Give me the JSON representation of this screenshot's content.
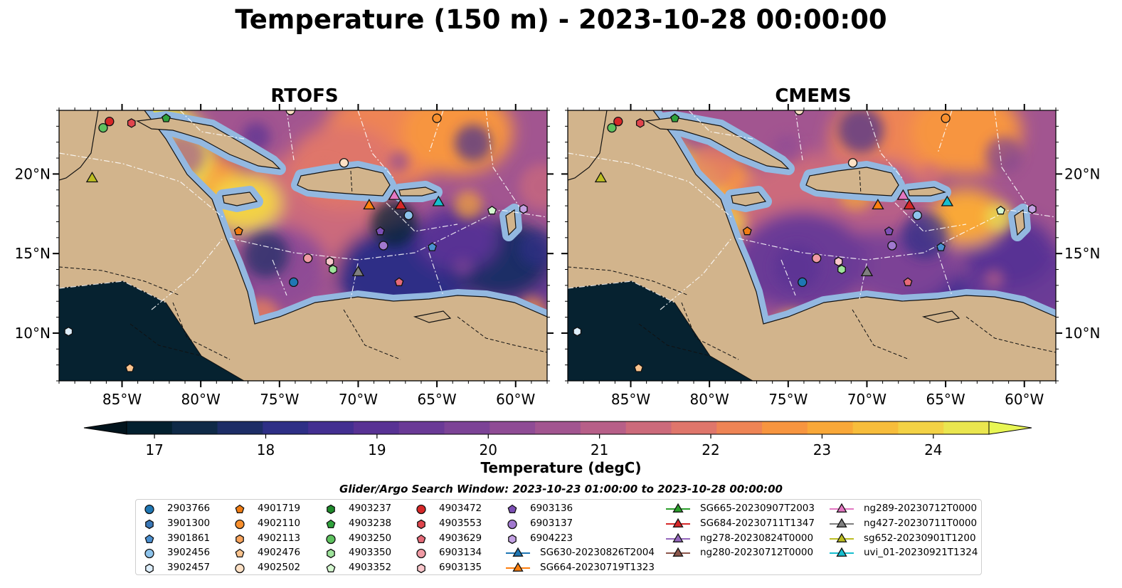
{
  "title": "Temperature (150 m) - 2023-10-28 00:00:00",
  "panels": [
    {
      "title": "RTOFS"
    },
    {
      "title": "CMEMS"
    }
  ],
  "axes": {
    "lon_ticks": [
      "85°W",
      "80°W",
      "75°W",
      "70°W",
      "65°W",
      "60°W"
    ],
    "lat_ticks": [
      "20°N",
      "15°N",
      "10°N"
    ],
    "lon_range": [
      -89,
      -58
    ],
    "lat_range": [
      7,
      24
    ]
  },
  "colorbar": {
    "label": "Temperature (degC)",
    "ticks": [
      "17",
      "18",
      "19",
      "20",
      "21",
      "22",
      "23",
      "24"
    ],
    "range": [
      16.75,
      24.5
    ],
    "colors": [
      "#03202f",
      "#0f2a47",
      "#1d2d66",
      "#2e2f86",
      "#432f91",
      "#583294",
      "#6a3a96",
      "#7c4396",
      "#8f4c95",
      "#a25590",
      "#b75f88",
      "#cc6a7b",
      "#df766b",
      "#ee8455",
      "#f7953f",
      "#f9a838",
      "#f7bd3b",
      "#f3d245",
      "#eae64f"
    ],
    "extend_low": "#02141d",
    "extend_high": "#e8f654"
  },
  "search_window": "Glider/Argo Search Window: 2023-10-23 01:00:00 to 2023-10-28 00:00:00",
  "legend": {
    "columns": [
      [
        {
          "label": "2903766",
          "marker": "circle",
          "color": "#1f77b4"
        },
        {
          "label": "3901300",
          "marker": "hexagon",
          "color": "#3a78b8"
        },
        {
          "label": "3901861",
          "marker": "pentagon",
          "color": "#4a8fd0"
        },
        {
          "label": "3902456",
          "marker": "circle",
          "color": "#8ec4ec"
        },
        {
          "label": "3902457",
          "marker": "hexagon",
          "color": "#ddeefb"
        }
      ],
      [
        {
          "label": "4901719",
          "marker": "pentagon",
          "color": "#f07c12"
        },
        {
          "label": "4902110",
          "marker": "circle",
          "color": "#f88f2d"
        },
        {
          "label": "4902113",
          "marker": "hexagon",
          "color": "#f9a45c"
        },
        {
          "label": "4902476",
          "marker": "pentagon",
          "color": "#fbc48e"
        },
        {
          "label": "4902502",
          "marker": "circle",
          "color": "#fde0c4"
        }
      ],
      [
        {
          "label": "4903237",
          "marker": "hexagon",
          "color": "#1e8b2a"
        },
        {
          "label": "4903238",
          "marker": "pentagon",
          "color": "#2fa23c"
        },
        {
          "label": "4903250",
          "marker": "circle",
          "color": "#5ec25f"
        },
        {
          "label": "4903350",
          "marker": "hexagon",
          "color": "#9ee39b"
        },
        {
          "label": "4903352",
          "marker": "pentagon",
          "color": "#d4f7cf"
        }
      ],
      [
        {
          "label": "4903472",
          "marker": "circle",
          "color": "#d62728"
        },
        {
          "label": "4903553",
          "marker": "hexagon",
          "color": "#e0454d"
        },
        {
          "label": "4903629",
          "marker": "pentagon",
          "color": "#e66a78"
        },
        {
          "label": "6903134",
          "marker": "circle",
          "color": "#f09aa4"
        },
        {
          "label": "6903135",
          "marker": "hexagon",
          "color": "#fac7cc"
        }
      ],
      [
        {
          "label": "6903136",
          "marker": "pentagon",
          "color": "#7c4fb5"
        },
        {
          "label": "6903137",
          "marker": "circle",
          "color": "#a178cf"
        },
        {
          "label": "6904223",
          "marker": "hexagon",
          "color": "#c3a1e3"
        },
        {
          "label": "SG630-20230826T2004",
          "marker": "triangle",
          "color": "#1f77b4",
          "line": true
        },
        {
          "label": "SG664-20230719T1323",
          "marker": "triangle",
          "color": "#ff7f0e",
          "line": true
        }
      ],
      [
        {
          "label": "SG665-20230907T2003",
          "marker": "triangle",
          "color": "#2ca02c",
          "line": true
        },
        {
          "label": "SG684-20230711T1347",
          "marker": "triangle",
          "color": "#d62728",
          "line": true
        },
        {
          "label": "ng278-20230824T0000",
          "marker": "triangle",
          "color": "#9467bd",
          "line": true
        },
        {
          "label": "ng280-20230712T0000",
          "marker": "triangle",
          "color": "#8c564b",
          "line": true
        }
      ],
      [
        {
          "label": "ng289-20230712T0000",
          "marker": "triangle",
          "color": "#e377c2",
          "line": true
        },
        {
          "label": "ng427-20230711T0000",
          "marker": "triangle",
          "color": "#7f7f7f",
          "line": true
        },
        {
          "label": "sg652-20230901T1200",
          "marker": "triangle",
          "color": "#bcbd22",
          "line": true
        },
        {
          "label": "uvi_01-20230921T1324",
          "marker": "triangle",
          "color": "#17becf",
          "line": true
        }
      ]
    ]
  },
  "markers": [
    {
      "lon": -85.8,
      "lat": 23.3,
      "marker": "circle",
      "color": "#d62728"
    },
    {
      "lon": -86.2,
      "lat": 22.9,
      "marker": "circle",
      "color": "#5ec25f"
    },
    {
      "lon": -84.4,
      "lat": 23.2,
      "marker": "hexagon",
      "color": "#e0454d"
    },
    {
      "lon": -82.2,
      "lat": 23.5,
      "marker": "pentagon",
      "color": "#2fa23c"
    },
    {
      "lon": -74.3,
      "lat": 24.0,
      "marker": "circle",
      "color": "#fde0c4"
    },
    {
      "lon": -65.0,
      "lat": 23.5,
      "marker": "circle",
      "color": "#f88f2d"
    },
    {
      "lon": -70.9,
      "lat": 20.7,
      "marker": "circle",
      "color": "#fde0c4"
    },
    {
      "lon": -77.6,
      "lat": 16.4,
      "marker": "pentagon",
      "color": "#f07c12"
    },
    {
      "lon": -73.2,
      "lat": 14.7,
      "marker": "circle",
      "color": "#f09aa4"
    },
    {
      "lon": -71.8,
      "lat": 14.5,
      "marker": "hexagon",
      "color": "#fac7cc"
    },
    {
      "lon": -71.6,
      "lat": 14.0,
      "marker": "hexagon",
      "color": "#9ee39b"
    },
    {
      "lon": -74.1,
      "lat": 13.2,
      "marker": "circle",
      "color": "#1f77b4"
    },
    {
      "lon": -68.6,
      "lat": 16.4,
      "marker": "pentagon",
      "color": "#7c4fb5"
    },
    {
      "lon": -68.4,
      "lat": 15.5,
      "marker": "circle",
      "color": "#a178cf"
    },
    {
      "lon": -67.4,
      "lat": 13.2,
      "marker": "pentagon",
      "color": "#e66a78"
    },
    {
      "lon": -66.8,
      "lat": 17.4,
      "marker": "circle",
      "color": "#8ec4ec"
    },
    {
      "lon": -65.3,
      "lat": 15.4,
      "marker": "pentagon",
      "color": "#4a8fd0"
    },
    {
      "lon": -61.5,
      "lat": 17.7,
      "marker": "pentagon",
      "color": "#d4f7cf"
    },
    {
      "lon": -59.5,
      "lat": 17.8,
      "marker": "hexagon",
      "color": "#c3a1e3"
    },
    {
      "lon": -88.4,
      "lat": 10.1,
      "marker": "hexagon",
      "color": "#ddeefb"
    },
    {
      "lon": -84.5,
      "lat": 7.8,
      "marker": "pentagon",
      "color": "#fbc48e"
    },
    {
      "lon": -86.9,
      "lat": 19.7,
      "marker": "triangle",
      "color": "#bcbd22"
    },
    {
      "lon": -69.3,
      "lat": 18.0,
      "marker": "triangle",
      "color": "#ff7f0e"
    },
    {
      "lon": -67.7,
      "lat": 18.6,
      "marker": "triangle",
      "color": "#e377c2"
    },
    {
      "lon": -67.3,
      "lat": 18.0,
      "marker": "triangle",
      "color": "#d62728"
    },
    {
      "lon": -64.9,
      "lat": 18.2,
      "marker": "triangle",
      "color": "#17becf"
    },
    {
      "lon": -70.0,
      "lat": 13.8,
      "marker": "triangle",
      "color": "#7f7f7f"
    }
  ]
}
